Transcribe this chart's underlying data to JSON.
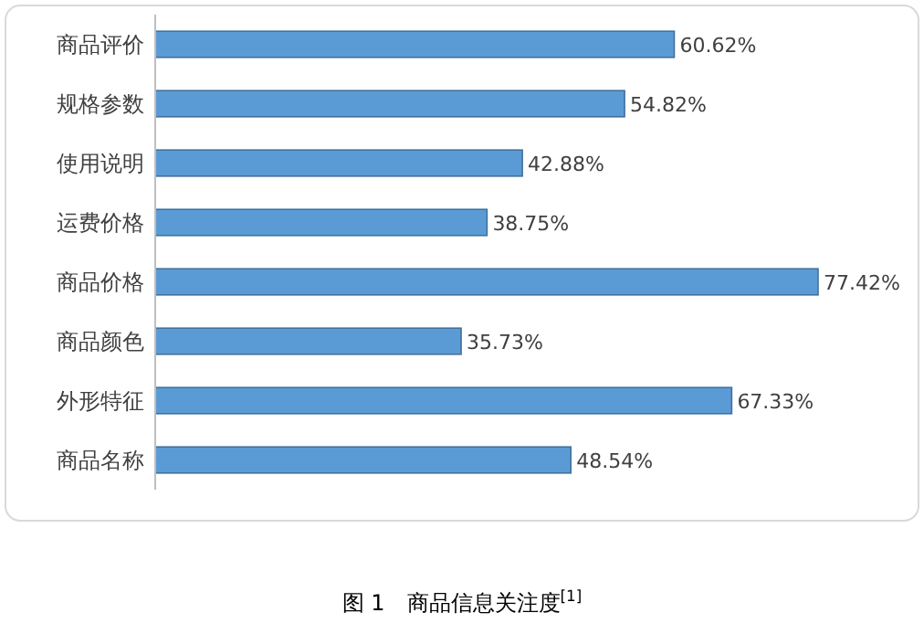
{
  "chart_data": {
    "type": "bar",
    "orientation": "horizontal",
    "categories": [
      "商品评价",
      "规格参数",
      "使用说明",
      "运费价格",
      "商品价格",
      "商品颜色",
      "外形特征",
      "商品名称"
    ],
    "values": [
      60.62,
      54.82,
      42.88,
      38.75,
      77.42,
      35.73,
      67.33,
      48.54
    ],
    "value_labels": [
      "60.62%",
      "54.82%",
      "42.88%",
      "38.75%",
      "77.42%",
      "35.73%",
      "67.33%",
      "48.54%"
    ],
    "color": "#5b9bd5",
    "annotations": [
      "图 1　商品信息关注度$^{[1]}$"
    ]
  }
}
